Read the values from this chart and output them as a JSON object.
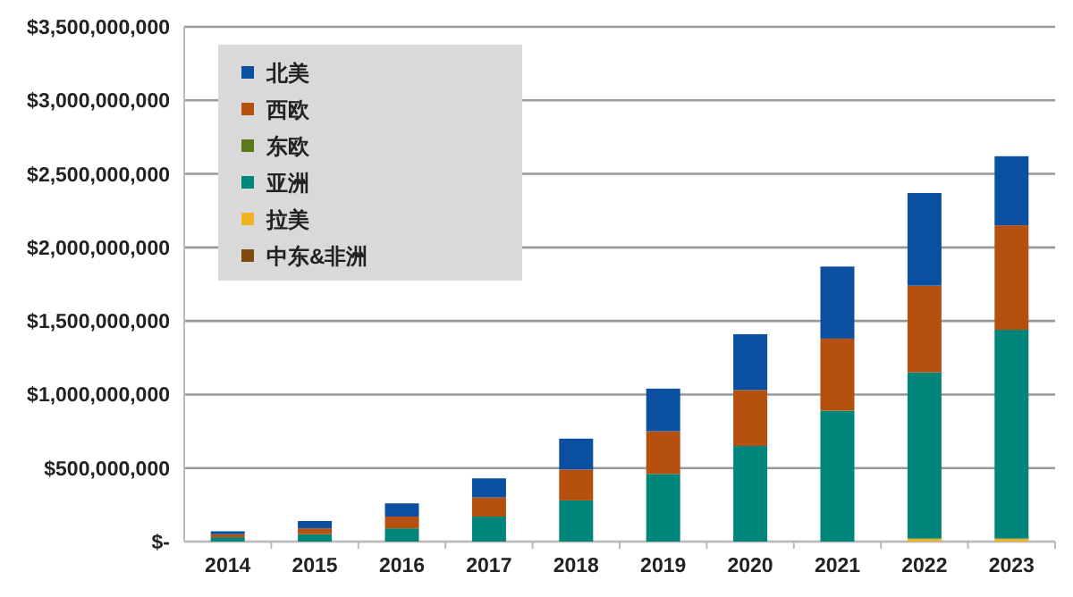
{
  "chart_data": {
    "type": "bar",
    "stacked": true,
    "legend": "top left",
    "grid": "y",
    "categories": [
      "2014",
      "2015",
      "2016",
      "2017",
      "2018",
      "2019",
      "2020",
      "2021",
      "2022",
      "2023"
    ],
    "ylim": [
      0,
      3500000000
    ],
    "yticks": [
      {
        "value": 0,
        "label": "$-"
      },
      {
        "value": 500000000,
        "label": "$500,000,000"
      },
      {
        "value": 1000000000,
        "label": "$1,000,000,000"
      },
      {
        "value": 1500000000,
        "label": "$1,500,000,000"
      },
      {
        "value": 2000000000,
        "label": "$2,000,000,000"
      },
      {
        "value": 2500000000,
        "label": "$2,500,000,000"
      },
      {
        "value": 3000000000,
        "label": "$3,000,000,000"
      },
      {
        "value": 3500000000,
        "label": "$3,500,000,000"
      }
    ],
    "series": [
      {
        "name": "中东&非洲",
        "color": "#7f4a10",
        "values": [
          0,
          0,
          0,
          0,
          0,
          0,
          0,
          0,
          0,
          0
        ]
      },
      {
        "name": "拉美",
        "color": "#f0b323",
        "values": [
          0,
          0,
          0,
          0,
          0,
          0,
          0,
          0,
          20000000,
          20000000
        ]
      },
      {
        "name": "亚洲",
        "color": "#00857a",
        "values": [
          30000000,
          50000000,
          90000000,
          170000000,
          280000000,
          460000000,
          650000000,
          890000000,
          1130000000,
          1420000000
        ]
      },
      {
        "name": "东欧",
        "color": "#5b7a1e",
        "values": [
          0,
          0,
          0,
          0,
          0,
          0,
          0,
          0,
          0,
          0
        ]
      },
      {
        "name": "西欧",
        "color": "#b5500f",
        "values": [
          20000000,
          40000000,
          80000000,
          130000000,
          210000000,
          290000000,
          380000000,
          490000000,
          590000000,
          710000000
        ]
      },
      {
        "name": "北美",
        "color": "#0a4fa0",
        "values": [
          20000000,
          50000000,
          90000000,
          130000000,
          210000000,
          290000000,
          380000000,
          490000000,
          630000000,
          470000000
        ]
      }
    ]
  }
}
